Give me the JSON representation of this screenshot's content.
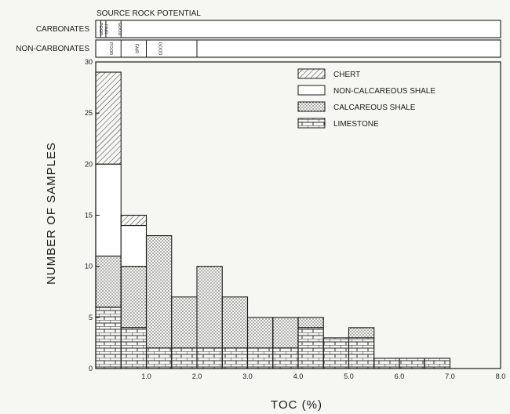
{
  "chart_data": {
    "type": "bar",
    "stacked": true,
    "histogram": true,
    "xlabel": "TOC (%)",
    "ylabel": "NUMBER OF SAMPLES",
    "xlim": [
      0,
      8
    ],
    "ylim": [
      0,
      30
    ],
    "x_ticks": [
      {
        "value": 1,
        "label": "1.0"
      },
      {
        "value": 2,
        "label": "2.0"
      },
      {
        "value": 3,
        "label": "3.0"
      },
      {
        "value": 4,
        "label": "4.0"
      },
      {
        "value": 5,
        "label": "5.0"
      },
      {
        "value": 6,
        "label": "6.0"
      },
      {
        "value": 7,
        "label": "7.0"
      },
      {
        "value": 8,
        "label": "8.0"
      }
    ],
    "y_ticks": [
      {
        "value": 0,
        "label": "0"
      },
      {
        "value": 5,
        "label": "5"
      },
      {
        "value": 10,
        "label": "10"
      },
      {
        "value": 15,
        "label": "15"
      },
      {
        "value": 20,
        "label": "20"
      },
      {
        "value": 25,
        "label": "25"
      },
      {
        "value": 30,
        "label": "30"
      }
    ],
    "bin_width": 0.5,
    "bin_starts": [
      0.0,
      0.5,
      1.0,
      1.5,
      2.0,
      2.5,
      3.0,
      3.5,
      4.0,
      4.5,
      5.0,
      5.5,
      6.0,
      6.5
    ],
    "series": [
      {
        "name": "LIMESTONE",
        "pattern": "brick",
        "values": [
          6,
          4,
          2,
          2,
          2,
          2,
          2,
          2,
          4,
          3,
          3,
          1,
          1,
          1
        ]
      },
      {
        "name": "CALCAREOUS SHALE",
        "pattern": "dots",
        "values": [
          5,
          6,
          11,
          5,
          8,
          5,
          3,
          3,
          1,
          0,
          1,
          0,
          0,
          0
        ]
      },
      {
        "name": "NON-CALCAREOUS SHALE",
        "pattern": "blank",
        "values": [
          9,
          4,
          0,
          0,
          0,
          0,
          0,
          0,
          0,
          0,
          0,
          0,
          0,
          0
        ]
      },
      {
        "name": "CHERT",
        "pattern": "hatch",
        "values": [
          9,
          1,
          0,
          0,
          0,
          0,
          0,
          0,
          0,
          0,
          0,
          0,
          0,
          0
        ]
      }
    ],
    "legend": {
      "placement": "top-right",
      "entries": [
        "CHERT",
        "NON-CALCAREOUS SHALE",
        "CALCAREOUS SHALE",
        "LIMESTONE"
      ]
    },
    "source_rock_potential": {
      "title": "SOURCE ROCK POTENTIAL",
      "rows": [
        {
          "label": "CARBONATES",
          "boundaries": [
            0.1,
            0.2,
            0.5
          ],
          "classes": [
            "POOR",
            "FAIR",
            "GOOD"
          ]
        },
        {
          "label": "NON-CARBONATES",
          "boundaries": [
            0.5,
            1.0,
            2.0
          ],
          "classes": [
            "POOR",
            "FAIR",
            "GOOD"
          ]
        }
      ]
    }
  }
}
